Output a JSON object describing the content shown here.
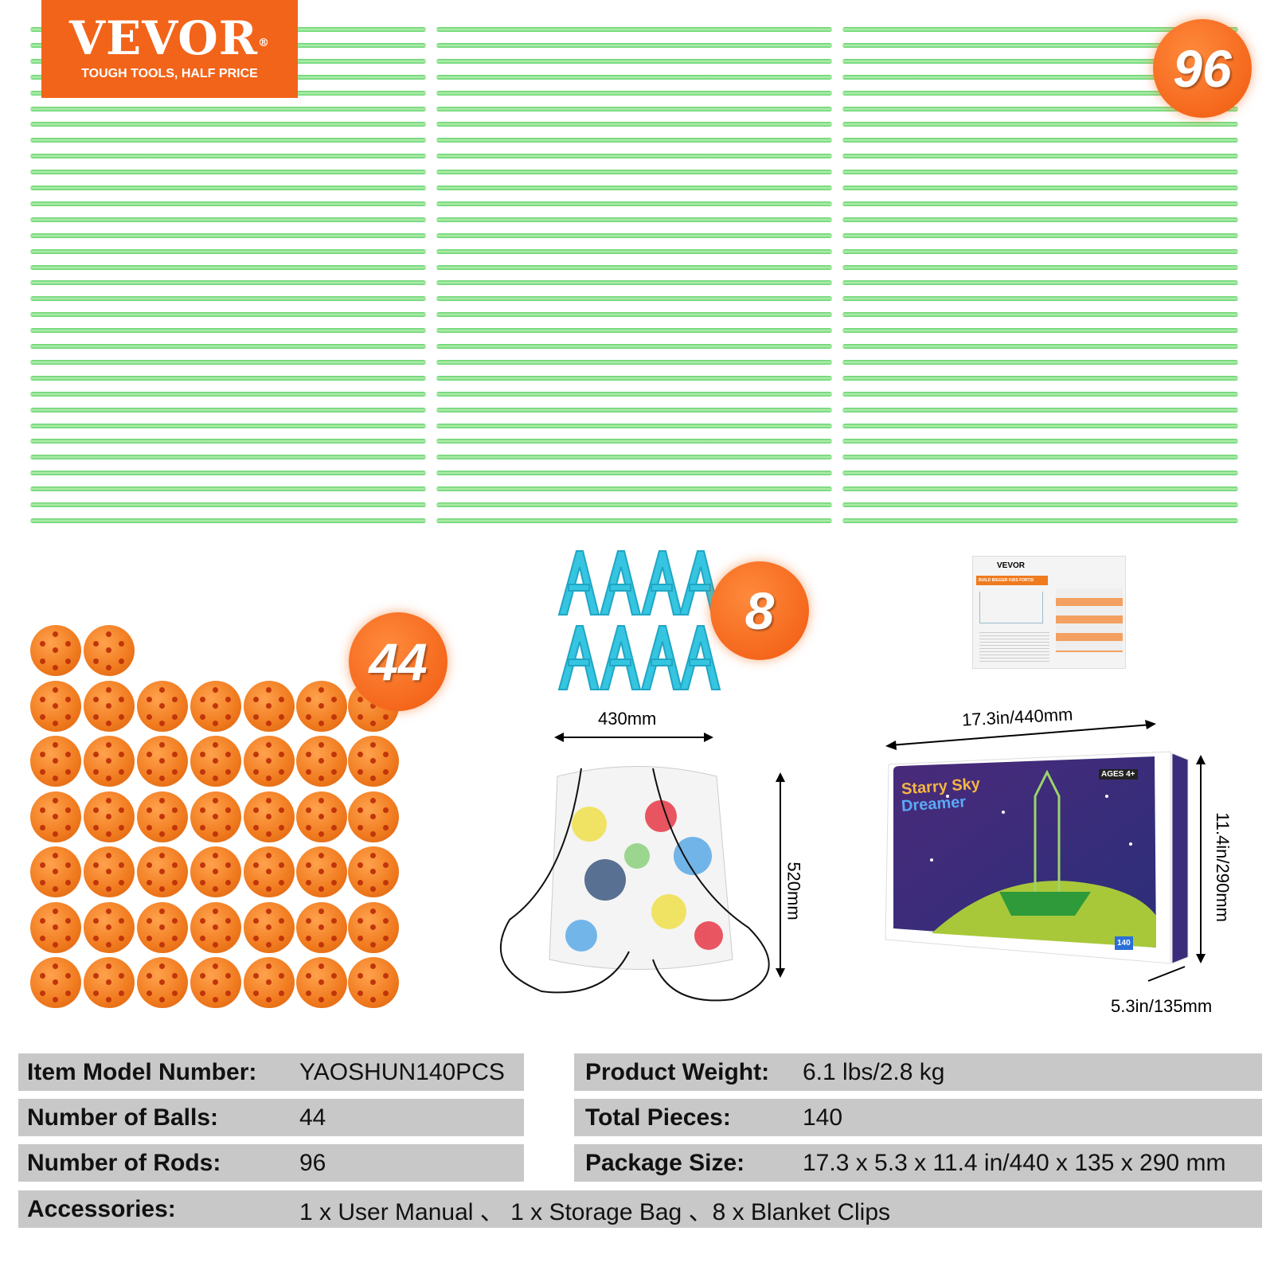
{
  "brand": {
    "name": "VEVOR",
    "registered": "®",
    "tagline": "TOUGH TOOLS, HALF PRICE",
    "color": "#f26419"
  },
  "badges": {
    "rods": "96",
    "balls": "44",
    "clips": "8"
  },
  "dimensions": {
    "bag_width": "430mm",
    "bag_height": "520mm",
    "box_length": "17.3in/440mm",
    "box_height": "11.4in/290mm",
    "box_depth": "5.3in/135mm"
  },
  "box": {
    "title_line1": "Starry Sky",
    "title_line2": "Dreamer",
    "ages": "AGES 4+",
    "pieces": "140"
  },
  "manual": {
    "brand": "VEVOR",
    "banner": "BUILD BIGGER KIDS FORTS!"
  },
  "specs": {
    "left": [
      {
        "label": "Item Model Number:",
        "value": "YAOSHUN140PCS"
      },
      {
        "label": "Number of Balls:",
        "value": "44"
      },
      {
        "label": "Number of Rods:",
        "value": "96"
      }
    ],
    "right": [
      {
        "label": "Product Weight:",
        "value": "6.1 lbs/2.8 kg"
      },
      {
        "label": "Total Pieces:",
        "value": "140"
      },
      {
        "label": "Package Size:",
        "value": "17.3 x 5.3 x 11.4 in/440 x 135 x 290 mm"
      }
    ],
    "accessories": {
      "label": "Accessories:",
      "value": "1 x User Manual 、 1 x Storage Bag 、8 x Blanket Clips"
    }
  }
}
